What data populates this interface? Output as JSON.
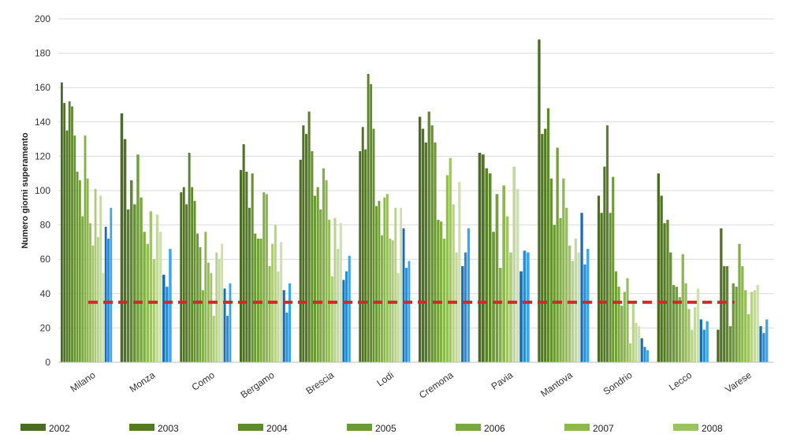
{
  "chart_data": {
    "type": "bar",
    "ylabel": "Numero giorni superamento",
    "xlabel": "",
    "ylim": [
      0,
      200
    ],
    "yticks": [
      "0",
      "20",
      "40",
      "60",
      "80",
      "100",
      "120",
      "140",
      "160",
      "180",
      "200"
    ],
    "grid": true,
    "legend_position": "bottom",
    "threshold": {
      "value": 35,
      "color": "#d62728"
    },
    "categories": [
      "Milano",
      "Monza",
      "Como",
      "Bergamo",
      "Brescia",
      "Lodi",
      "Cremona",
      "Pavia",
      "Mantova",
      "Sondrio",
      "Lecco",
      "Varese"
    ],
    "legend": [
      {
        "name": "2002",
        "color": "#4a6b22"
      },
      {
        "name": "2003",
        "color": "#557a26"
      },
      {
        "name": "2004",
        "color": "#5f8a2c"
      },
      {
        "name": "2005",
        "color": "#6b9a33"
      },
      {
        "name": "2006",
        "color": "#7aa83e"
      },
      {
        "name": "2007",
        "color": "#8cb84e"
      },
      {
        "name": "2008",
        "color": "#9cc45e"
      }
    ],
    "bar_colors": [
      "#4a6b22",
      "#4f7224",
      "#557a26",
      "#5a8229",
      "#5f8a2c",
      "#65922f",
      "#6b9a33",
      "#72a138",
      "#7aa83e",
      "#82b046",
      "#8cb84e",
      "#96be58",
      "#a1c468",
      "#adcb7a",
      "#b9d28c",
      "#c4d99e",
      "#cfe0b0",
      "#175796",
      "#1a6cb6",
      "#2a8bd6",
      "#3aa8e8"
    ],
    "series_values": [
      [
        163,
        151,
        135,
        152,
        149,
        132,
        111,
        106,
        85,
        132,
        107,
        81,
        68,
        101,
        73,
        97,
        52,
        79,
        72,
        90
      ],
      [
        145,
        130,
        89,
        106,
        92,
        121,
        96,
        76,
        69,
        88,
        60,
        86,
        76,
        51,
        44,
        66
      ],
      [
        99,
        102,
        92,
        122,
        102,
        94,
        75,
        67,
        42,
        76,
        58,
        52,
        27,
        64,
        60,
        69,
        43,
        27,
        46
      ],
      [
        112,
        127,
        111,
        90,
        110,
        75,
        72,
        72,
        99,
        98,
        56,
        69,
        80,
        53,
        70,
        42,
        29,
        46
      ],
      [
        118,
        138,
        133,
        146,
        123,
        97,
        102,
        89,
        113,
        106,
        83,
        50,
        84,
        66,
        81,
        48,
        53,
        62
      ],
      [
        123,
        137,
        124,
        168,
        162,
        136,
        91,
        94,
        74,
        96,
        98,
        72,
        71,
        90,
        52,
        90,
        78,
        55,
        59
      ],
      [
        143,
        136,
        128,
        146,
        138,
        128,
        83,
        82,
        72,
        109,
        119,
        92,
        64,
        105,
        56,
        64,
        78
      ],
      [
        122,
        121,
        113,
        110,
        76,
        98,
        55,
        103,
        85,
        64,
        114,
        101,
        53,
        65,
        64
      ],
      [
        188,
        133,
        136,
        148,
        107,
        80,
        125,
        84,
        107,
        90,
        68,
        59,
        72,
        64,
        87,
        57,
        66
      ],
      [
        97,
        87,
        114,
        138,
        87,
        108,
        53,
        44,
        33,
        41,
        49,
        11,
        35,
        23,
        21,
        14,
        9,
        7
      ],
      [
        110,
        97,
        81,
        83,
        64,
        45,
        44,
        38,
        63,
        46,
        31,
        19,
        32,
        43,
        25,
        19,
        24
      ],
      [
        19,
        78,
        56,
        56,
        21,
        46,
        44,
        69,
        56,
        42,
        28,
        41,
        42,
        45,
        21,
        17,
        25
      ]
    ]
  }
}
